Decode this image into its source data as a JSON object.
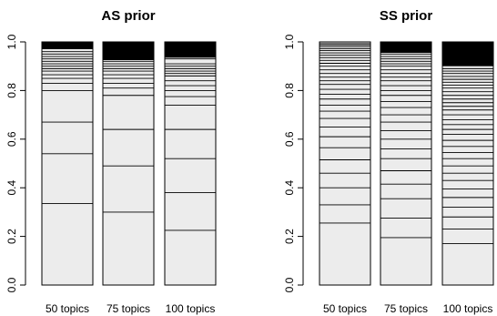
{
  "figure": {
    "background": "#ffffff",
    "bar_fill": "#ececec",
    "line_color": "#000000"
  },
  "chart_data": [
    {
      "type": "bar",
      "subtype": "stacked-segment",
      "title": "AS prior",
      "ylim": [
        0,
        1
      ],
      "yticks": [
        0.0,
        0.2,
        0.4,
        0.6,
        0.8,
        1.0
      ],
      "ytick_labels": [
        "0.0",
        "0.2",
        "0.4",
        "0.6",
        "0.8",
        "1.0"
      ],
      "grid": false,
      "categories": [
        "50 topics",
        "75 topics",
        "100 topics"
      ],
      "cumulative_boundaries": [
        [
          0.335,
          0.54,
          0.67,
          0.8,
          0.83,
          0.85,
          0.865,
          0.88,
          0.89,
          0.9,
          0.91,
          0.92,
          0.93,
          0.94,
          0.95,
          0.96
        ],
        [
          0.3,
          0.49,
          0.64,
          0.78,
          0.81,
          0.83,
          0.85,
          0.865,
          0.88,
          0.89,
          0.9,
          0.91,
          0.92
        ],
        [
          0.225,
          0.38,
          0.52,
          0.64,
          0.74,
          0.775,
          0.8,
          0.82,
          0.84,
          0.86,
          0.87,
          0.88,
          0.89,
          0.9,
          0.91,
          0.93
        ]
      ],
      "dense_top": [
        {
          "from": 0.97,
          "to": 1.0
        },
        {
          "from": 0.925,
          "to": 1.0
        },
        {
          "from": 0.935,
          "to": 1.0
        }
      ]
    },
    {
      "type": "bar",
      "subtype": "stacked-segment",
      "title": "SS prior",
      "ylim": [
        0,
        1
      ],
      "yticks": [
        0.0,
        0.2,
        0.4,
        0.6,
        0.8,
        1.0
      ],
      "ytick_labels": [
        "0.0",
        "0.2",
        "0.4",
        "0.6",
        "0.8",
        "1.0"
      ],
      "grid": false,
      "categories": [
        "50 topics",
        "75 topics",
        "100 topics"
      ],
      "cumulative_boundaries": [
        [
          0.255,
          0.33,
          0.4,
          0.46,
          0.515,
          0.565,
          0.61,
          0.65,
          0.685,
          0.715,
          0.74,
          0.765,
          0.785,
          0.805,
          0.825,
          0.84,
          0.855,
          0.87,
          0.885,
          0.9,
          0.912,
          0.924,
          0.935,
          0.945,
          0.955,
          0.964,
          0.972,
          0.98,
          0.987,
          0.993
        ],
        [
          0.195,
          0.275,
          0.355,
          0.415,
          0.47,
          0.52,
          0.56,
          0.6,
          0.635,
          0.67,
          0.7,
          0.73,
          0.755,
          0.78,
          0.8,
          0.82,
          0.84,
          0.855,
          0.87,
          0.885,
          0.9,
          0.91,
          0.92,
          0.93,
          0.94,
          0.95
        ],
        [
          0.17,
          0.23,
          0.28,
          0.32,
          0.36,
          0.395,
          0.43,
          0.46,
          0.49,
          0.52,
          0.545,
          0.57,
          0.595,
          0.62,
          0.64,
          0.66,
          0.68,
          0.7,
          0.72,
          0.735,
          0.75,
          0.765,
          0.78,
          0.795,
          0.81,
          0.822,
          0.834,
          0.846,
          0.858,
          0.87,
          0.88,
          0.89
        ]
      ],
      "dense_top": [
        null,
        {
          "from": 0.955,
          "to": 1.0
        },
        {
          "from": 0.9,
          "to": 1.0
        }
      ]
    }
  ]
}
